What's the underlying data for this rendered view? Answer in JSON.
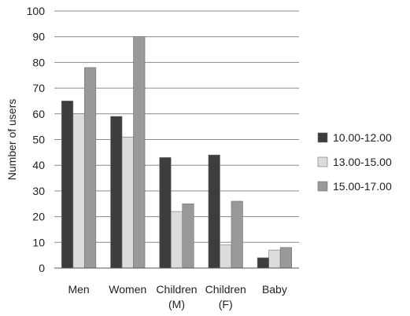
{
  "chart_data": {
    "type": "bar",
    "title": "",
    "xlabel": "",
    "ylabel": "Number of users",
    "ylim": [
      0,
      100
    ],
    "yticks": [
      0,
      10,
      20,
      30,
      40,
      50,
      60,
      70,
      80,
      90,
      100
    ],
    "grid": true,
    "legend_position": "right",
    "categories": [
      [
        "Men"
      ],
      [
        "Women"
      ],
      [
        "Children",
        "(M)"
      ],
      [
        "Children",
        "(F)"
      ],
      [
        "Baby"
      ]
    ],
    "series": [
      {
        "name": "10.00-12.00",
        "color": "#3d3d3d",
        "values": [
          65,
          59,
          43,
          44,
          4
        ]
      },
      {
        "name": "13.00-15.00",
        "color": "#dcdcdc",
        "values": [
          60,
          51,
          22,
          9,
          7
        ]
      },
      {
        "name": "15.00-17.00",
        "color": "#999999",
        "values": [
          78,
          90,
          25,
          26,
          8
        ]
      }
    ]
  }
}
